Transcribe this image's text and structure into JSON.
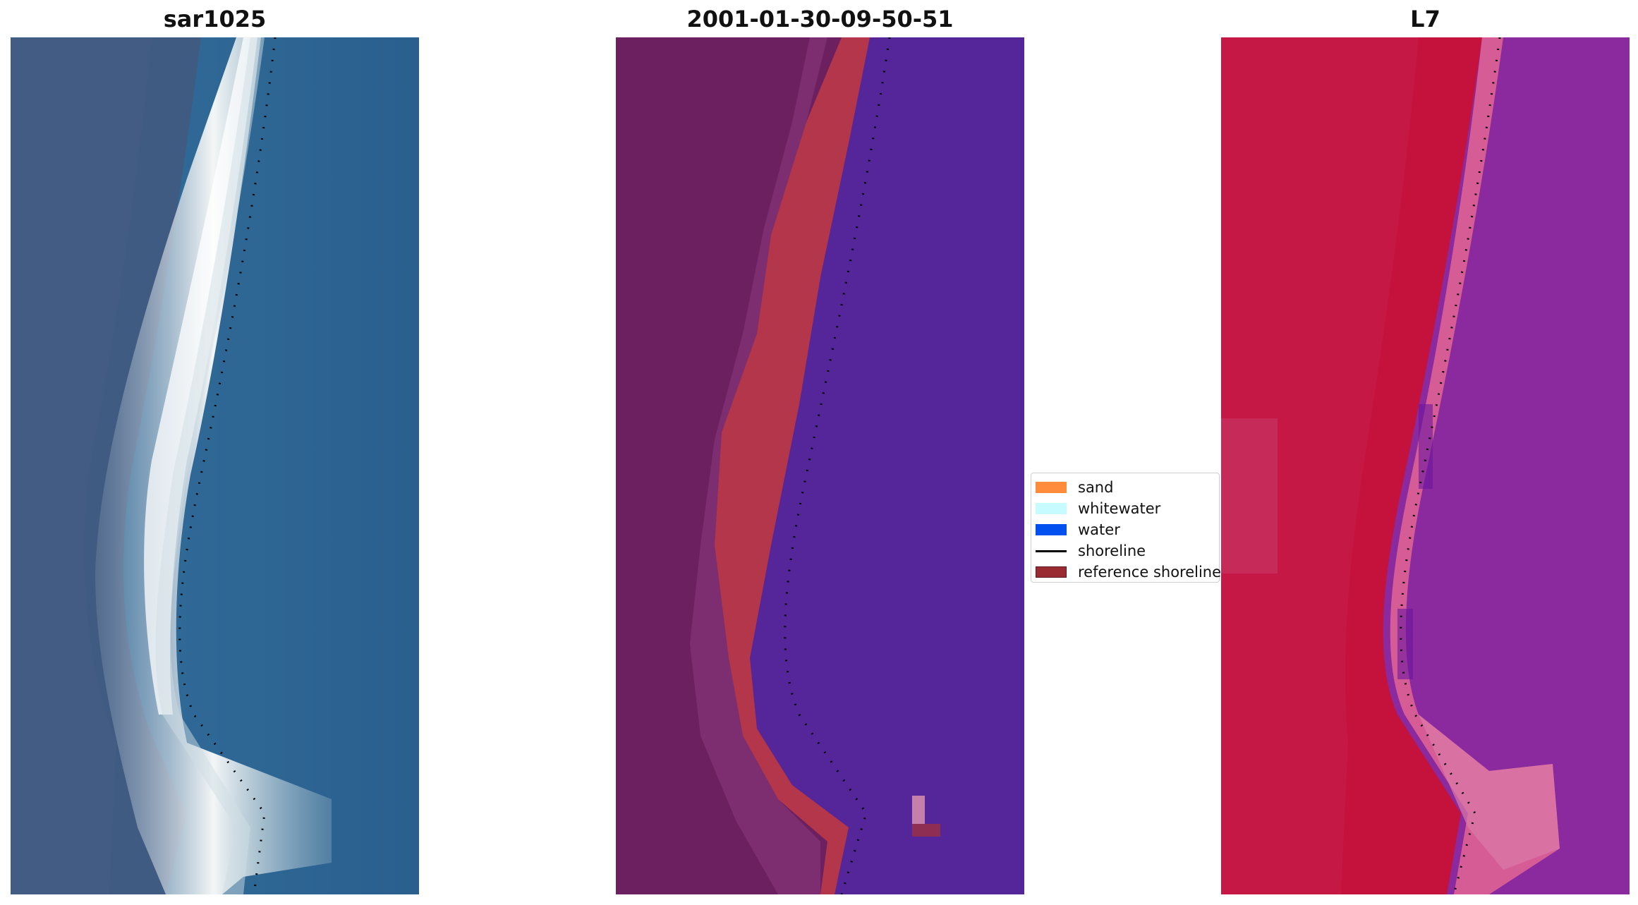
{
  "panels": [
    {
      "title": "sar1025",
      "kind": "rgb"
    },
    {
      "title": "2001-01-30-09-50-51",
      "kind": "classified"
    },
    {
      "title": "L7",
      "kind": "false-color"
    }
  ],
  "legend": {
    "items": [
      {
        "label": "sand",
        "color": "#ff8c3b",
        "type": "patch"
      },
      {
        "label": "whitewater",
        "color": "#c6fbff",
        "type": "patch"
      },
      {
        "label": "water",
        "color": "#0050f0",
        "type": "patch"
      },
      {
        "label": "shoreline",
        "color": "#000000",
        "type": "line"
      },
      {
        "label": "reference shoreline",
        "color": "#9a2b33",
        "type": "patch"
      }
    ]
  },
  "colors": {
    "rgb_sea": "#2f6c9a",
    "rgb_land": "#3e5a80",
    "rgb_surf": "#e8eef2",
    "class_land": "#6d2060",
    "class_sand": "#b3364a",
    "class_water": "#54269a",
    "fc_land": "#c4123c",
    "fc_water": "#8a2a9e",
    "fc_surf": "#d65c96"
  }
}
